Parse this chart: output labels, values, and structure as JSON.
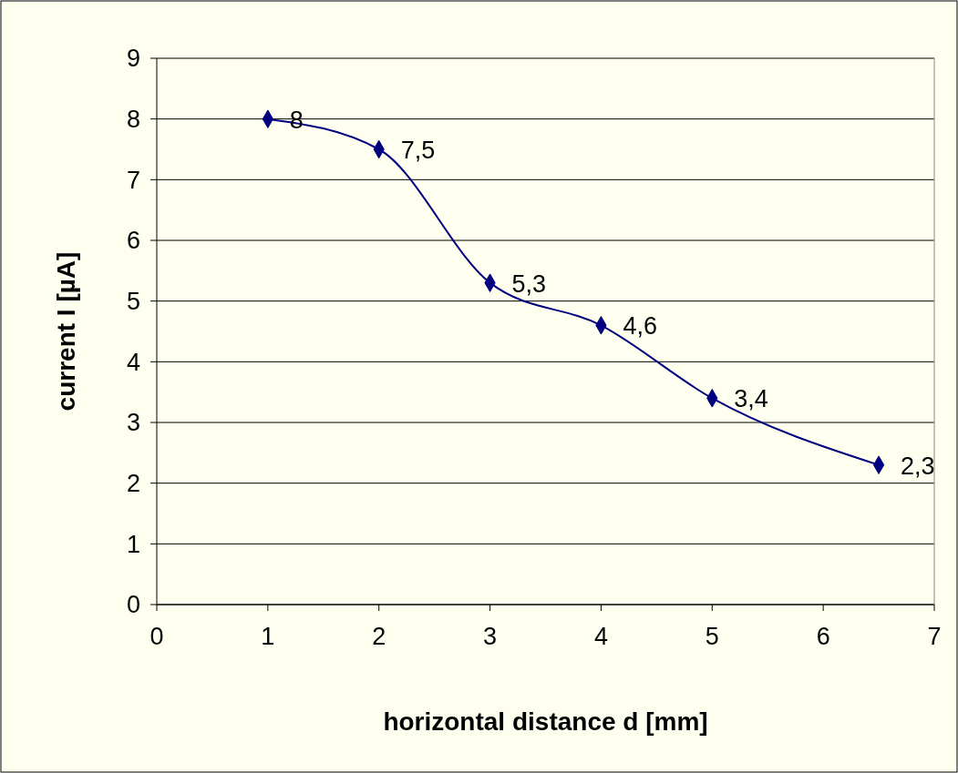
{
  "chart_data": {
    "type": "line",
    "xlabel": "horizontal distance d  [mm]",
    "ylabel": "current I [µA]",
    "x": [
      1,
      2,
      3,
      4,
      5,
      6.5
    ],
    "series": [
      {
        "color": "#000080",
        "values": [
          8,
          7.5,
          5.3,
          4.6,
          3.4,
          2.3
        ],
        "value_labels": [
          "8",
          "7,5",
          "5,3",
          "4,6",
          "3,4",
          "2,3"
        ]
      }
    ],
    "xlim": [
      0,
      7
    ],
    "xticks": [
      0,
      1,
      2,
      3,
      4,
      5,
      6,
      7
    ],
    "ylim": [
      0,
      9
    ],
    "yticks": [
      0,
      1,
      2,
      3,
      4,
      5,
      6,
      7,
      8,
      9
    ],
    "grid": "y",
    "marker": "diamond",
    "line_style": "solid"
  }
}
